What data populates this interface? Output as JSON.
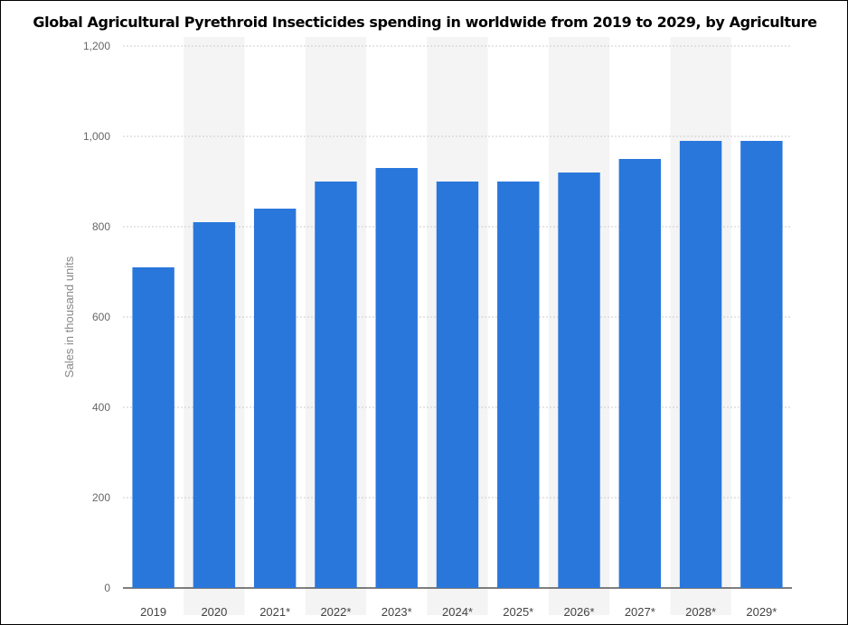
{
  "chart_data": {
    "type": "bar",
    "title": "Global Agricultural Pyrethroid Insecticides spending in worldwide from 2019 to 2029, by Agriculture",
    "xlabel": "",
    "ylabel": "Sales in thousand units",
    "categories": [
      "2019",
      "2020",
      "2021*",
      "2022*",
      "2023*",
      "2024*",
      "2025*",
      "2026*",
      "2027*",
      "2028*",
      "2029*"
    ],
    "values": [
      710,
      810,
      840,
      900,
      930,
      900,
      900,
      920,
      950,
      990,
      990
    ],
    "ylim": [
      0,
      1200
    ],
    "yticks": [
      0,
      200,
      400,
      600,
      800,
      1000,
      1200
    ],
    "ytick_labels": [
      "0",
      "200",
      "400",
      "600",
      "800",
      "1,000",
      "1,200"
    ],
    "bar_color": "#2a77dc",
    "band_color": "#f4f4f4",
    "grid": true,
    "legend": "none"
  }
}
